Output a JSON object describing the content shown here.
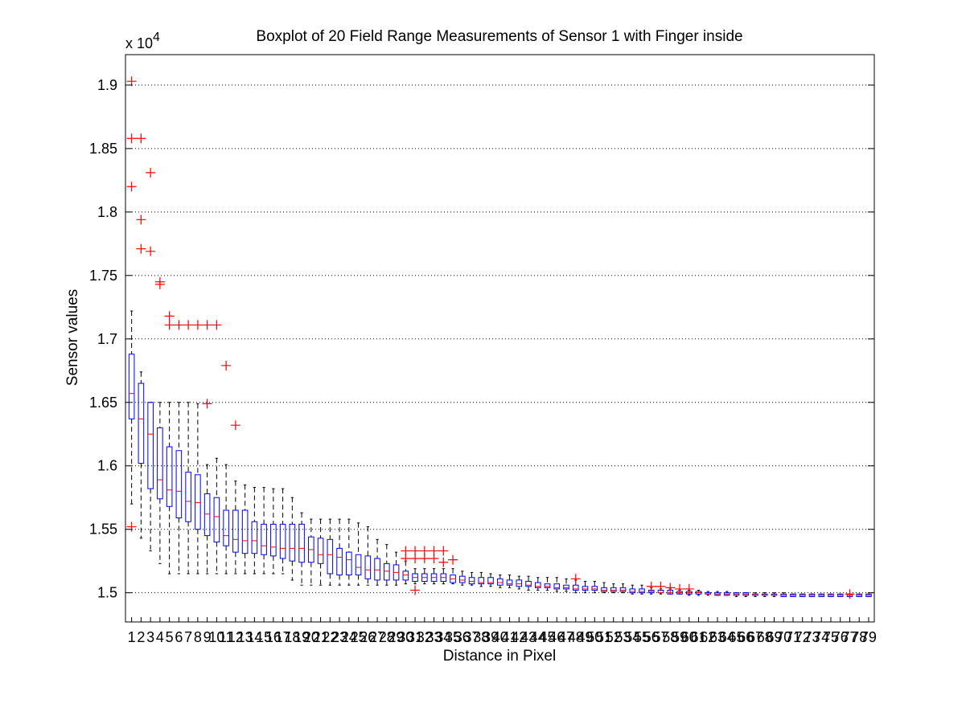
{
  "chart_data": {
    "type": "boxplot",
    "title": "Boxplot of 20 Field Range Measurements of Sensor 1 with Finger inside",
    "xlabel": "Distance in Pixel",
    "ylabel": "Sensor values",
    "y_multiplier": "x 10",
    "y_multiplier_exponent": "4",
    "ylim": [
      1.477,
      1.924
    ],
    "yticks": [
      1.5,
      1.55,
      1.6,
      1.65,
      1.7,
      1.75,
      1.8,
      1.85,
      1.9
    ],
    "ytick_labels": [
      "1.5",
      "1.55",
      "1.6",
      "1.65",
      "1.7",
      "1.75",
      "1.8",
      "1.85",
      "1.9"
    ],
    "grid": "horizontal dotted",
    "colors": {
      "box": "#0000ff",
      "median": "#ff0000",
      "whisker": "#000000",
      "outlier": "#ff0000"
    },
    "categories": [
      "1",
      "2",
      "3",
      "4",
      "5",
      "6",
      "7",
      "8",
      "9",
      "10",
      "11",
      "12",
      "13",
      "14",
      "15",
      "16",
      "17",
      "18",
      "19",
      "20",
      "21",
      "22",
      "23",
      "24",
      "25",
      "26",
      "27",
      "28",
      "29",
      "30",
      "31",
      "32",
      "33",
      "34",
      "35",
      "36",
      "37",
      "38",
      "39",
      "40",
      "41",
      "42",
      "43",
      "44",
      "45",
      "46",
      "47",
      "48",
      "49",
      "50",
      "51",
      "52",
      "53",
      "54",
      "55",
      "56",
      "57",
      "58",
      "59",
      "60",
      "61",
      "62",
      "63",
      "64",
      "65",
      "66",
      "67",
      "68",
      "69",
      "70",
      "71",
      "72",
      "73",
      "74",
      "75",
      "76",
      "77",
      "78",
      "79"
    ],
    "boxes": [
      {
        "x": 1,
        "lw": 1.57,
        "q1": 1.637,
        "med": 1.657,
        "q3": 1.688,
        "uw": 1.722,
        "out": [
          1.903,
          1.858,
          1.82,
          1.552
        ]
      },
      {
        "x": 2,
        "lw": 1.543,
        "q1": 1.602,
        "med": 1.637,
        "q3": 1.665,
        "uw": 1.674,
        "out": [
          1.858,
          1.794,
          1.771
        ]
      },
      {
        "x": 3,
        "lw": 1.533,
        "q1": 1.582,
        "med": 1.625,
        "q3": 1.65,
        "uw": 1.65,
        "out": [
          1.831,
          1.769
        ]
      },
      {
        "x": 4,
        "lw": 1.523,
        "q1": 1.574,
        "med": 1.589,
        "q3": 1.63,
        "uw": 1.65,
        "out": [
          1.745,
          1.743
        ]
      },
      {
        "x": 5,
        "lw": 1.515,
        "q1": 1.568,
        "med": 1.581,
        "q3": 1.615,
        "uw": 1.65,
        "out": [
          1.718,
          1.711
        ]
      },
      {
        "x": 6,
        "lw": 1.515,
        "q1": 1.559,
        "med": 1.58,
        "q3": 1.612,
        "uw": 1.65,
        "out": [
          1.711
        ]
      },
      {
        "x": 7,
        "lw": 1.515,
        "q1": 1.556,
        "med": 1.572,
        "q3": 1.595,
        "uw": 1.65,
        "out": [
          1.711
        ]
      },
      {
        "x": 8,
        "lw": 1.515,
        "q1": 1.55,
        "med": 1.571,
        "q3": 1.593,
        "uw": 1.649,
        "out": [
          1.711
        ]
      },
      {
        "x": 9,
        "lw": 1.515,
        "q1": 1.545,
        "med": 1.562,
        "q3": 1.578,
        "uw": 1.601,
        "out": [
          1.711,
          1.649
        ]
      },
      {
        "x": 10,
        "lw": 1.515,
        "q1": 1.54,
        "med": 1.56,
        "q3": 1.575,
        "uw": 1.606,
        "out": [
          1.711
        ]
      },
      {
        "x": 11,
        "lw": 1.515,
        "q1": 1.537,
        "med": 1.545,
        "q3": 1.565,
        "uw": 1.601,
        "out": [
          1.679
        ]
      },
      {
        "x": 12,
        "lw": 1.515,
        "q1": 1.532,
        "med": 1.542,
        "q3": 1.565,
        "uw": 1.588,
        "out": [
          1.632
        ]
      },
      {
        "x": 13,
        "lw": 1.515,
        "q1": 1.531,
        "med": 1.541,
        "q3": 1.565,
        "uw": 1.585,
        "out": []
      },
      {
        "x": 14,
        "lw": 1.515,
        "q1": 1.531,
        "med": 1.541,
        "q3": 1.556,
        "uw": 1.583,
        "out": []
      },
      {
        "x": 15,
        "lw": 1.515,
        "q1": 1.53,
        "med": 1.537,
        "q3": 1.554,
        "uw": 1.583,
        "out": []
      },
      {
        "x": 16,
        "lw": 1.515,
        "q1": 1.529,
        "med": 1.536,
        "q3": 1.554,
        "uw": 1.582,
        "out": []
      },
      {
        "x": 17,
        "lw": 1.515,
        "q1": 1.527,
        "med": 1.535,
        "q3": 1.554,
        "uw": 1.582,
        "out": []
      },
      {
        "x": 18,
        "lw": 1.51,
        "q1": 1.525,
        "med": 1.535,
        "q3": 1.554,
        "uw": 1.575,
        "out": []
      },
      {
        "x": 19,
        "lw": 1.506,
        "q1": 1.524,
        "med": 1.535,
        "q3": 1.554,
        "uw": 1.563,
        "out": []
      },
      {
        "x": 20,
        "lw": 1.506,
        "q1": 1.524,
        "med": 1.534,
        "q3": 1.544,
        "uw": 1.558,
        "out": []
      },
      {
        "x": 21,
        "lw": 1.506,
        "q1": 1.523,
        "med": 1.53,
        "q3": 1.543,
        "uw": 1.558,
        "out": []
      },
      {
        "x": 22,
        "lw": 1.506,
        "q1": 1.515,
        "med": 1.53,
        "q3": 1.542,
        "uw": 1.558,
        "out": []
      },
      {
        "x": 23,
        "lw": 1.506,
        "q1": 1.514,
        "med": 1.528,
        "q3": 1.535,
        "uw": 1.558,
        "out": []
      },
      {
        "x": 24,
        "lw": 1.506,
        "q1": 1.514,
        "med": 1.526,
        "q3": 1.532,
        "uw": 1.558,
        "out": []
      },
      {
        "x": 25,
        "lw": 1.506,
        "q1": 1.514,
        "med": 1.52,
        "q3": 1.53,
        "uw": 1.555,
        "out": []
      },
      {
        "x": 26,
        "lw": 1.506,
        "q1": 1.511,
        "med": 1.518,
        "q3": 1.529,
        "uw": 1.552,
        "out": []
      },
      {
        "x": 27,
        "lw": 1.506,
        "q1": 1.51,
        "med": 1.518,
        "q3": 1.527,
        "uw": 1.542,
        "out": []
      },
      {
        "x": 28,
        "lw": 1.506,
        "q1": 1.51,
        "med": 1.517,
        "q3": 1.523,
        "uw": 1.538,
        "out": []
      },
      {
        "x": 29,
        "lw": 1.506,
        "q1": 1.51,
        "med": 1.516,
        "q3": 1.522,
        "uw": 1.532,
        "out": []
      },
      {
        "x": 30,
        "lw": 1.507,
        "q1": 1.51,
        "med": 1.514,
        "q3": 1.517,
        "uw": 1.525,
        "out": [
          1.533,
          1.527
        ]
      },
      {
        "x": 31,
        "lw": 1.507,
        "q1": 1.509,
        "med": 1.512,
        "q3": 1.515,
        "uw": 1.519,
        "out": [
          1.533,
          1.527,
          1.502
        ]
      },
      {
        "x": 32,
        "lw": 1.507,
        "q1": 1.509,
        "med": 1.512,
        "q3": 1.515,
        "uw": 1.519,
        "out": [
          1.533,
          1.527
        ]
      },
      {
        "x": 33,
        "lw": 1.507,
        "q1": 1.509,
        "med": 1.512,
        "q3": 1.515,
        "uw": 1.519,
        "out": [
          1.533,
          1.527
        ]
      },
      {
        "x": 34,
        "lw": 1.507,
        "q1": 1.509,
        "med": 1.512,
        "q3": 1.515,
        "uw": 1.519,
        "out": [
          1.533,
          1.524
        ]
      },
      {
        "x": 35,
        "lw": 1.507,
        "q1": 1.508,
        "med": 1.511,
        "q3": 1.514,
        "uw": 1.519,
        "out": [
          1.526
        ]
      },
      {
        "x": 36,
        "lw": 1.506,
        "q1": 1.508,
        "med": 1.51,
        "q3": 1.513,
        "uw": 1.517,
        "out": []
      },
      {
        "x": 37,
        "lw": 1.506,
        "q1": 1.507,
        "med": 1.509,
        "q3": 1.512,
        "uw": 1.516,
        "out": []
      },
      {
        "x": 38,
        "lw": 1.505,
        "q1": 1.507,
        "med": 1.508,
        "q3": 1.512,
        "uw": 1.516,
        "out": []
      },
      {
        "x": 39,
        "lw": 1.505,
        "q1": 1.507,
        "med": 1.508,
        "q3": 1.512,
        "uw": 1.515,
        "out": []
      },
      {
        "x": 40,
        "lw": 1.504,
        "q1": 1.506,
        "med": 1.508,
        "q3": 1.511,
        "uw": 1.514,
        "out": []
      },
      {
        "x": 41,
        "lw": 1.504,
        "q1": 1.506,
        "med": 1.507,
        "q3": 1.51,
        "uw": 1.514,
        "out": []
      },
      {
        "x": 42,
        "lw": 1.503,
        "q1": 1.505,
        "med": 1.507,
        "q3": 1.51,
        "uw": 1.513,
        "out": []
      },
      {
        "x": 43,
        "lw": 1.502,
        "q1": 1.505,
        "med": 1.506,
        "q3": 1.509,
        "uw": 1.513,
        "out": []
      },
      {
        "x": 44,
        "lw": 1.502,
        "q1": 1.504,
        "med": 1.505,
        "q3": 1.508,
        "uw": 1.512,
        "out": []
      },
      {
        "x": 45,
        "lw": 1.502,
        "q1": 1.504,
        "med": 1.505,
        "q3": 1.507,
        "uw": 1.512,
        "out": []
      },
      {
        "x": 46,
        "lw": 1.501,
        "q1": 1.503,
        "med": 1.504,
        "q3": 1.507,
        "uw": 1.512,
        "out": []
      },
      {
        "x": 47,
        "lw": 1.501,
        "q1": 1.503,
        "med": 1.504,
        "q3": 1.506,
        "uw": 1.511,
        "out": []
      },
      {
        "x": 48,
        "lw": 1.5,
        "q1": 1.502,
        "med": 1.503,
        "q3": 1.506,
        "uw": 1.51,
        "out": [
          1.511
        ]
      },
      {
        "x": 49,
        "lw": 1.5,
        "q1": 1.502,
        "med": 1.503,
        "q3": 1.505,
        "uw": 1.509,
        "out": []
      },
      {
        "x": 50,
        "lw": 1.5,
        "q1": 1.502,
        "med": 1.503,
        "q3": 1.505,
        "uw": 1.509,
        "out": []
      },
      {
        "x": 51,
        "lw": 1.5,
        "q1": 1.501,
        "med": 1.502,
        "q3": 1.504,
        "uw": 1.508,
        "out": []
      },
      {
        "x": 52,
        "lw": 1.5,
        "q1": 1.501,
        "med": 1.502,
        "q3": 1.504,
        "uw": 1.507,
        "out": []
      },
      {
        "x": 53,
        "lw": 1.5,
        "q1": 1.501,
        "med": 1.502,
        "q3": 1.504,
        "uw": 1.507,
        "out": []
      },
      {
        "x": 54,
        "lw": 1.499,
        "q1": 1.5,
        "med": 1.501,
        "q3": 1.503,
        "uw": 1.506,
        "out": []
      },
      {
        "x": 55,
        "lw": 1.499,
        "q1": 1.5,
        "med": 1.501,
        "q3": 1.503,
        "uw": 1.506,
        "out": []
      },
      {
        "x": 56,
        "lw": 1.499,
        "q1": 1.5,
        "med": 1.501,
        "q3": 1.502,
        "uw": 1.504,
        "out": [
          1.505
        ]
      },
      {
        "x": 57,
        "lw": 1.499,
        "q1": 1.5,
        "med": 1.5,
        "q3": 1.502,
        "uw": 1.503,
        "out": [
          1.505
        ]
      },
      {
        "x": 58,
        "lw": 1.499,
        "q1": 1.499,
        "med": 1.5,
        "q3": 1.502,
        "uw": 1.503,
        "out": [
          1.504
        ]
      },
      {
        "x": 59,
        "lw": 1.499,
        "q1": 1.499,
        "med": 1.5,
        "q3": 1.501,
        "uw": 1.502,
        "out": [
          1.503
        ]
      },
      {
        "x": 60,
        "lw": 1.498,
        "q1": 1.499,
        "med": 1.5,
        "q3": 1.501,
        "uw": 1.502,
        "out": [
          1.503
        ]
      },
      {
        "x": 61,
        "lw": 1.498,
        "q1": 1.499,
        "med": 1.5,
        "q3": 1.501,
        "uw": 1.502,
        "out": []
      },
      {
        "x": 62,
        "lw": 1.498,
        "q1": 1.499,
        "med": 1.499,
        "q3": 1.5,
        "uw": 1.501,
        "out": []
      },
      {
        "x": 63,
        "lw": 1.498,
        "q1": 1.498,
        "med": 1.499,
        "q3": 1.5,
        "uw": 1.501,
        "out": []
      },
      {
        "x": 64,
        "lw": 1.498,
        "q1": 1.498,
        "med": 1.499,
        "q3": 1.5,
        "uw": 1.501,
        "out": []
      },
      {
        "x": 65,
        "lw": 1.497,
        "q1": 1.498,
        "med": 1.499,
        "q3": 1.5,
        "uw": 1.5,
        "out": []
      },
      {
        "x": 66,
        "lw": 1.497,
        "q1": 1.498,
        "med": 1.499,
        "q3": 1.5,
        "uw": 1.5,
        "out": []
      },
      {
        "x": 67,
        "lw": 1.497,
        "q1": 1.498,
        "med": 1.499,
        "q3": 1.499,
        "uw": 1.5,
        "out": []
      },
      {
        "x": 68,
        "lw": 1.497,
        "q1": 1.498,
        "med": 1.498,
        "q3": 1.499,
        "uw": 1.5,
        "out": []
      },
      {
        "x": 69,
        "lw": 1.497,
        "q1": 1.498,
        "med": 1.498,
        "q3": 1.499,
        "uw": 1.5,
        "out": []
      },
      {
        "x": 70,
        "lw": 1.497,
        "q1": 1.497,
        "med": 1.498,
        "q3": 1.499,
        "uw": 1.5,
        "out": []
      },
      {
        "x": 71,
        "lw": 1.497,
        "q1": 1.497,
        "med": 1.498,
        "q3": 1.499,
        "uw": 1.499,
        "out": []
      },
      {
        "x": 72,
        "lw": 1.497,
        "q1": 1.497,
        "med": 1.498,
        "q3": 1.499,
        "uw": 1.499,
        "out": []
      },
      {
        "x": 73,
        "lw": 1.497,
        "q1": 1.497,
        "med": 1.498,
        "q3": 1.499,
        "uw": 1.499,
        "out": []
      },
      {
        "x": 74,
        "lw": 1.497,
        "q1": 1.497,
        "med": 1.498,
        "q3": 1.499,
        "uw": 1.499,
        "out": []
      },
      {
        "x": 75,
        "lw": 1.497,
        "q1": 1.497,
        "med": 1.498,
        "q3": 1.499,
        "uw": 1.499,
        "out": []
      },
      {
        "x": 76,
        "lw": 1.497,
        "q1": 1.497,
        "med": 1.498,
        "q3": 1.499,
        "uw": 1.499,
        "out": []
      },
      {
        "x": 77,
        "lw": 1.497,
        "q1": 1.497,
        "med": 1.498,
        "q3": 1.499,
        "uw": 1.499,
        "out": [
          1.499
        ]
      },
      {
        "x": 78,
        "lw": 1.497,
        "q1": 1.497,
        "med": 1.498,
        "q3": 1.499,
        "uw": 1.499,
        "out": []
      },
      {
        "x": 79,
        "lw": 1.497,
        "q1": 1.497,
        "med": 1.498,
        "q3": 1.499,
        "uw": 1.499,
        "out": []
      }
    ]
  }
}
